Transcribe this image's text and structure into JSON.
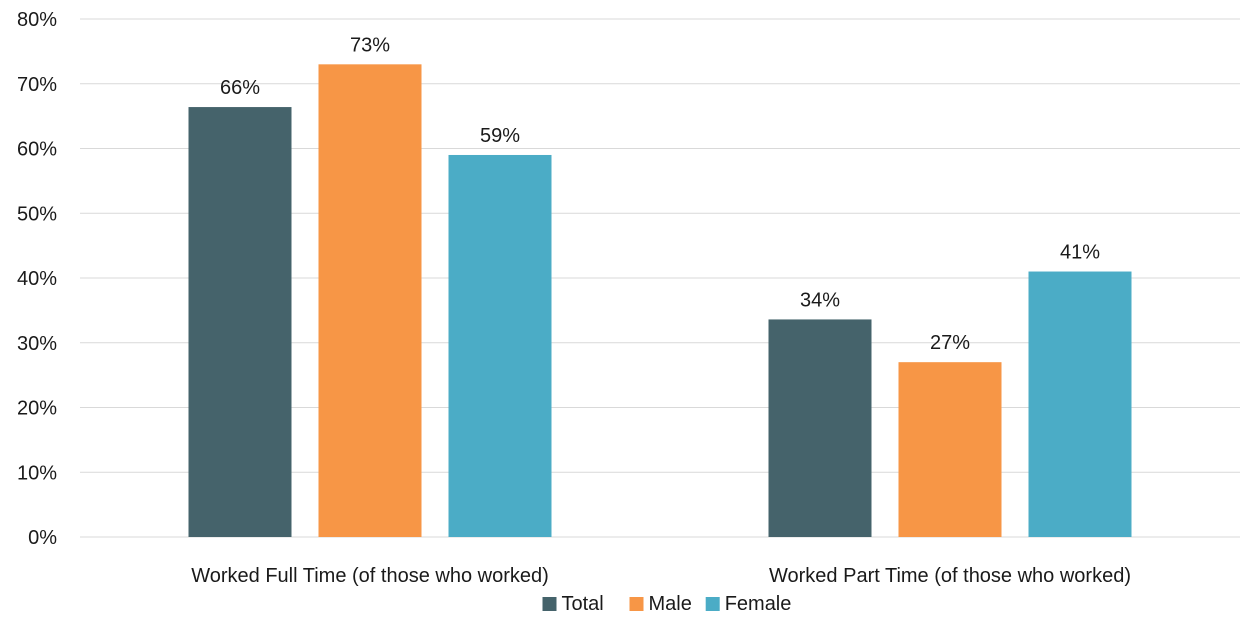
{
  "chart_data": {
    "type": "bar",
    "title": "",
    "xlabel": "",
    "ylabel": "",
    "categories": [
      "Worked Full Time (of those who worked)",
      "Worked Part Time (of those who worked)"
    ],
    "series": [
      {
        "name": "Total",
        "values": [
          66.4,
          33.6
        ],
        "labels": [
          "66%",
          "34%"
        ],
        "color": "#45636b"
      },
      {
        "name": "Male",
        "values": [
          73.0,
          27.0
        ],
        "labels": [
          "73%",
          "27%"
        ],
        "color": "#f79646"
      },
      {
        "name": "Female",
        "values": [
          59.0,
          41.0
        ],
        "labels": [
          "59%",
          "41%"
        ],
        "color": "#4bacc6"
      }
    ],
    "ylim": [
      0,
      80
    ],
    "yticks": [
      0,
      10,
      20,
      30,
      40,
      50,
      60,
      70,
      80
    ],
    "ytick_labels": [
      "0%",
      "10%",
      "20%",
      "30%",
      "40%",
      "50%",
      "60%",
      "70%",
      "80%"
    ],
    "grid": true,
    "legend_position": "bottom"
  }
}
